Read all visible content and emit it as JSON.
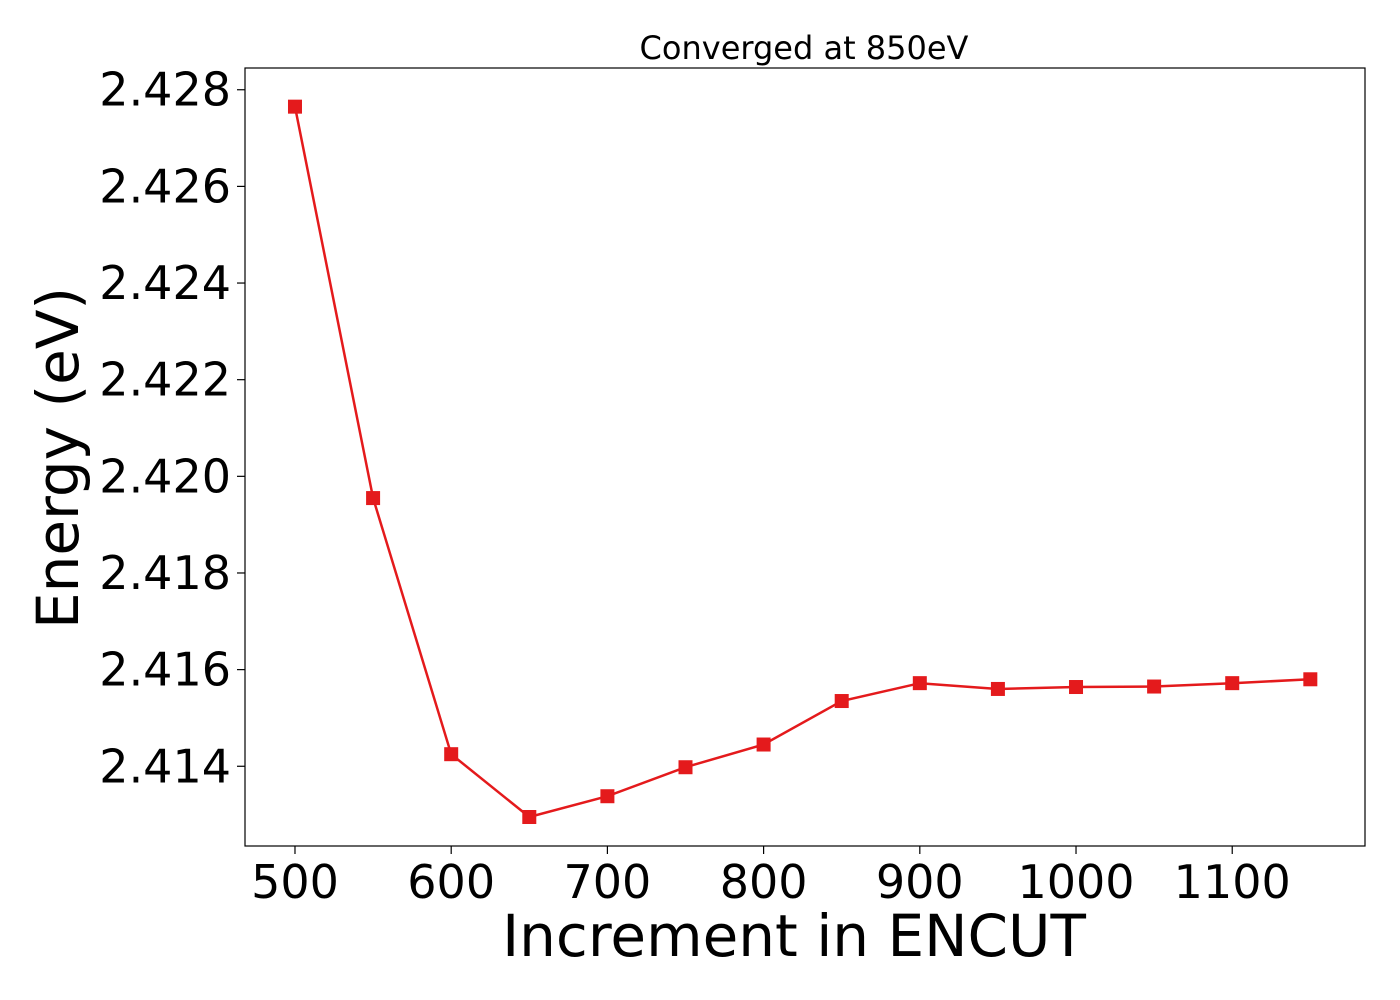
{
  "chart_data": {
    "type": "line",
    "title": "Converged at 850eV",
    "xlabel": "Increment in ENCUT",
    "ylabel": "Energy (eV)",
    "x": [
      500,
      550,
      600,
      650,
      700,
      750,
      800,
      850,
      900,
      950,
      1000,
      1050,
      1100,
      1150
    ],
    "series": [
      {
        "values": [
          2.42765,
          2.41955,
          2.41425,
          2.41295,
          2.41338,
          2.41398,
          2.41445,
          2.41535,
          2.41572,
          2.4156,
          2.41564,
          2.41565,
          2.41572,
          2.4158
        ],
        "color": "#e41a1c",
        "marker": "square"
      }
    ],
    "xlim": [
      468,
      1185
    ],
    "ylim": [
      2.41235,
      2.42845
    ],
    "xticks": [
      500,
      600,
      700,
      800,
      900,
      1000,
      1100
    ],
    "yticks": [
      2.414,
      2.416,
      2.418,
      2.42,
      2.422,
      2.424,
      2.426,
      2.428
    ],
    "ytick_labels": [
      "2.414",
      "2.416",
      "2.418",
      "2.420",
      "2.422",
      "2.424",
      "2.426",
      "2.428"
    ],
    "grid": false,
    "legend": "none"
  }
}
